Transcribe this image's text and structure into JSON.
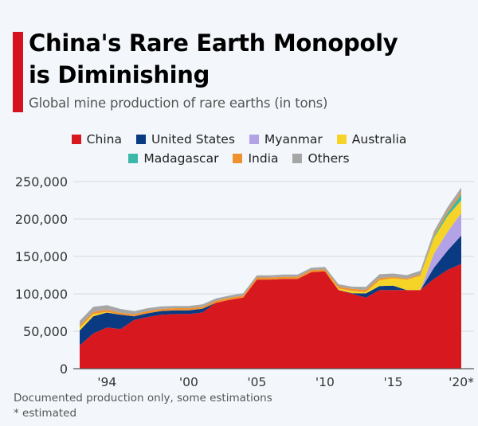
{
  "header": {
    "title_line1": "China's Rare Earth Monopoly",
    "title_line2": "is Diminishing",
    "subtitle": "Global mine production of rare earths (in tons)"
  },
  "footnotes": {
    "note": "Documented production only, some estimations",
    "asterisk": "* estimated"
  },
  "chart_data": {
    "type": "area",
    "stacked": true,
    "title": "China's Rare Earth Monopoly is Diminishing",
    "subtitle": "Global mine production of rare earths (in tons)",
    "xlabel": "",
    "ylabel": "",
    "x": [
      1992,
      1993,
      1994,
      1995,
      1996,
      1997,
      1998,
      1999,
      2000,
      2001,
      2002,
      2003,
      2004,
      2005,
      2006,
      2007,
      2008,
      2009,
      2010,
      2011,
      2012,
      2013,
      2014,
      2015,
      2016,
      2017,
      2018,
      2019,
      2020
    ],
    "x_ticks": [
      {
        "value": 1994,
        "label": "'94"
      },
      {
        "value": 2000,
        "label": "'00"
      },
      {
        "value": 2005,
        "label": "'05"
      },
      {
        "value": 2010,
        "label": "'10"
      },
      {
        "value": 2015,
        "label": "'15"
      },
      {
        "value": 2020,
        "label": "'20*"
      }
    ],
    "y_ticks": [
      {
        "value": 0,
        "label": "0"
      },
      {
        "value": 50000,
        "label": "50,000"
      },
      {
        "value": 100000,
        "label": "100,000"
      },
      {
        "value": 150000,
        "label": "150,000"
      },
      {
        "value": 200000,
        "label": "200,000"
      },
      {
        "value": 250000,
        "label": "250,000"
      }
    ],
    "ylim": [
      0,
      250000
    ],
    "xlim": [
      1992,
      2020
    ],
    "grid": true,
    "legend_position": "top-center",
    "series": [
      {
        "name": "China",
        "color": "#d7191f",
        "values": [
          31000,
          47000,
          55000,
          53000,
          65000,
          69000,
          72000,
          73000,
          73000,
          75000,
          88000,
          92000,
          95000,
          119000,
          119000,
          120000,
          120000,
          129000,
          130000,
          105000,
          100000,
          95000,
          105000,
          105000,
          105000,
          105000,
          120000,
          132000,
          140000
        ]
      },
      {
        "name": "United States",
        "color": "#0a3a82",
        "values": [
          20000,
          23000,
          20000,
          19000,
          5000,
          5000,
          5000,
          5000,
          5000,
          5000,
          0,
          0,
          0,
          0,
          0,
          0,
          0,
          0,
          0,
          0,
          800,
          5500,
          5400,
          5900,
          0,
          0,
          15000,
          26000,
          38000
        ]
      },
      {
        "name": "Myanmar",
        "color": "#b3a3e6",
        "values": [
          0,
          0,
          0,
          0,
          0,
          0,
          0,
          0,
          0,
          0,
          0,
          0,
          0,
          0,
          0,
          0,
          0,
          0,
          0,
          0,
          0,
          0,
          0,
          0,
          0,
          0,
          19000,
          25000,
          30000
        ]
      },
      {
        "name": "Australia",
        "color": "#f5d327",
        "values": [
          4000,
          3000,
          1000,
          0,
          0,
          0,
          0,
          0,
          0,
          0,
          0,
          0,
          0,
          0,
          0,
          0,
          0,
          0,
          0,
          2000,
          3000,
          2000,
          8000,
          10000,
          14000,
          19000,
          21000,
          21000,
          17000
        ]
      },
      {
        "name": "Madagascar",
        "color": "#3cb8aa",
        "values": [
          0,
          0,
          0,
          0,
          0,
          0,
          0,
          0,
          0,
          0,
          0,
          0,
          0,
          0,
          0,
          0,
          0,
          0,
          0,
          0,
          0,
          0,
          0,
          0,
          0,
          0,
          2000,
          4000,
          8000
        ]
      },
      {
        "name": "India",
        "color": "#f0912f",
        "values": [
          2800,
          2800,
          2800,
          2800,
          2800,
          2800,
          2800,
          2800,
          2800,
          2800,
          2800,
          2800,
          2800,
          2800,
          2800,
          2800,
          2800,
          2800,
          2800,
          2800,
          2800,
          2800,
          2800,
          1700,
          1500,
          1800,
          1800,
          3000,
          3000
        ]
      },
      {
        "name": "Others",
        "color": "#a6a6a6",
        "values": [
          6000,
          7000,
          6000,
          5000,
          4000,
          4000,
          3500,
          3000,
          3000,
          3000,
          3000,
          3000,
          3000,
          3000,
          3000,
          3000,
          3000,
          3000,
          3000,
          3000,
          3000,
          4000,
          5000,
          4500,
          4500,
          5000,
          5000,
          5000,
          6000
        ]
      }
    ]
  }
}
